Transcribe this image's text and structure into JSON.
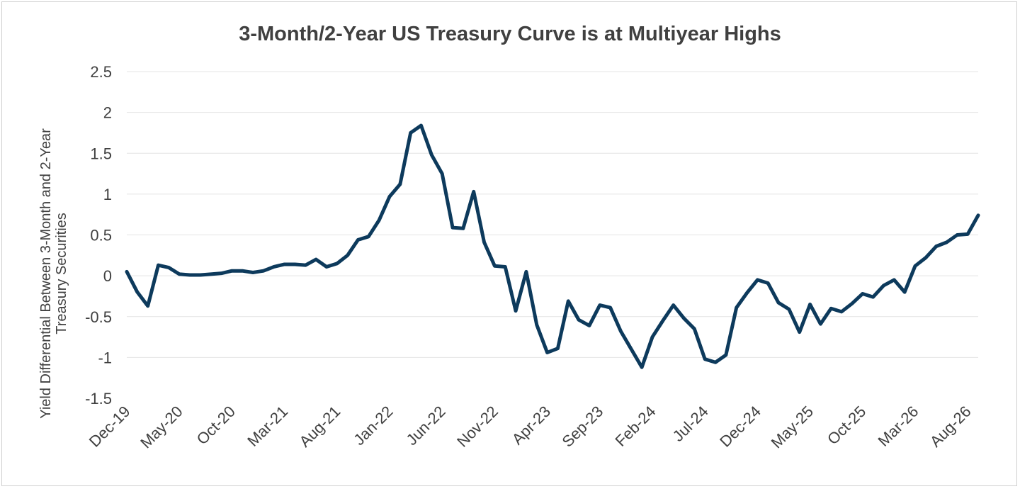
{
  "chart_data": {
    "type": "line",
    "title": "3-Month/2-Year US Treasury Curve is at Multiyear Highs",
    "ylabel_lines": [
      "Yield Differential Between 3-Month and 2-Year",
      "Treasury Securities"
    ],
    "xlabel": "",
    "ylim": [
      -1.5,
      2.5
    ],
    "yticks": [
      "2.5",
      "2",
      "1.5",
      "1",
      "0.5",
      "0",
      "-0.5",
      "-1",
      "-1.5"
    ],
    "ytick_values": [
      2.5,
      2,
      1.5,
      1,
      0.5,
      0,
      -0.5,
      -1,
      -1.5
    ],
    "xtick_labels": [
      "Dec-19",
      "May-20",
      "Oct-20",
      "Mar-21",
      "Aug-21",
      "Jan-22",
      "Jun-22",
      "Nov-22",
      "Apr-23",
      "Sep-23",
      "Feb-24",
      "Jul-24",
      "Dec-24",
      "May-25",
      "Oct-25",
      "Mar-26",
      "Aug-26"
    ],
    "grid": "horizontal",
    "line_color": "#0d3a5c",
    "series": [
      {
        "values": [
          0.05,
          -0.2,
          -0.37,
          0.13,
          0.1,
          0.02,
          0.01,
          0.01,
          0.02,
          0.03,
          0.06,
          0.06,
          0.04,
          0.06,
          0.11,
          0.14,
          0.14,
          0.13,
          0.2,
          0.11,
          0.15,
          0.25,
          0.44,
          0.48,
          0.68,
          0.97,
          1.12,
          1.75,
          1.84,
          1.48,
          1.25,
          0.59,
          0.58,
          1.03,
          0.41,
          0.12,
          0.11,
          -0.43,
          0.05,
          -0.6,
          -0.94,
          -0.89,
          -0.31,
          -0.54,
          -0.61,
          -0.36,
          -0.39,
          -0.68,
          -0.9,
          -1.12,
          -0.75,
          -0.55,
          -0.36,
          -0.52,
          -0.65,
          -1.02,
          -1.06,
          -0.97,
          -0.39,
          -0.21,
          -0.05,
          -0.09,
          -0.33,
          -0.41,
          -0.69,
          -0.35,
          -0.59,
          -0.4,
          -0.44,
          -0.34,
          -0.22,
          -0.26,
          -0.12,
          -0.05,
          -0.2,
          0.12,
          0.22,
          0.36,
          0.41,
          0.5,
          0.51,
          0.74
        ]
      }
    ]
  }
}
